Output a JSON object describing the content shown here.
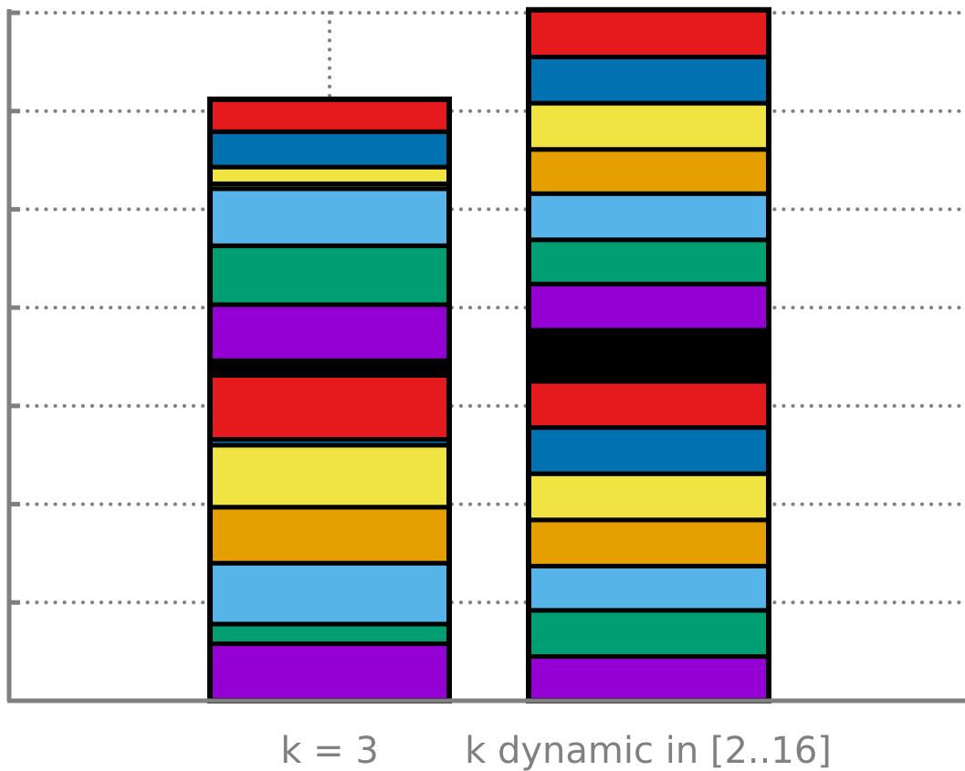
{
  "chart_data": {
    "type": "bar",
    "stacked": true,
    "grid": true,
    "categories": [
      "k = 3",
      "k dynamic in [2..16]"
    ],
    "ylim": [
      0,
      7
    ],
    "yticks": [
      0,
      1,
      2,
      3,
      4,
      5,
      6,
      7
    ],
    "ytick_labels_visible": false,
    "bars": [
      {
        "label": "k = 3",
        "segments": [
          {
            "value": 0.58,
            "color": "#9400D3"
          },
          {
            "value": 0.2,
            "color": "#009E73"
          },
          {
            "value": 0.62,
            "color": "#56B4E9"
          },
          {
            "value": 0.57,
            "color": "#E69F00"
          },
          {
            "value": 0.63,
            "color": "#F0E442"
          },
          {
            "value": 0.06,
            "color": "#0072B2"
          },
          {
            "value": 0.65,
            "color": "#E41A1C"
          },
          {
            "value": 0.15,
            "color": "#000000"
          },
          {
            "value": 0.57,
            "color": "#9400D3"
          },
          {
            "value": 0.6,
            "color": "#009E73"
          },
          {
            "value": 0.58,
            "color": "#56B4E9"
          },
          {
            "value": 0.05,
            "color": "#E69F00"
          },
          {
            "value": 0.17,
            "color": "#F0E442"
          },
          {
            "value": 0.36,
            "color": "#0072B2"
          },
          {
            "value": 0.33,
            "color": "#E41A1C"
          }
        ]
      },
      {
        "label": "k dynamic in [2..16]",
        "segments": [
          {
            "value": 0.45,
            "color": "#9400D3"
          },
          {
            "value": 0.47,
            "color": "#009E73"
          },
          {
            "value": 0.45,
            "color": "#56B4E9"
          },
          {
            "value": 0.47,
            "color": "#E69F00"
          },
          {
            "value": 0.47,
            "color": "#F0E442"
          },
          {
            "value": 0.47,
            "color": "#0072B2"
          },
          {
            "value": 0.47,
            "color": "#E41A1C"
          },
          {
            "value": 0.52,
            "color": "#000000"
          },
          {
            "value": 0.47,
            "color": "#9400D3"
          },
          {
            "value": 0.45,
            "color": "#009E73"
          },
          {
            "value": 0.47,
            "color": "#56B4E9"
          },
          {
            "value": 0.45,
            "color": "#E69F00"
          },
          {
            "value": 0.47,
            "color": "#F0E442"
          },
          {
            "value": 0.47,
            "color": "#0072B2"
          },
          {
            "value": 0.48,
            "color": "#E41A1C"
          }
        ]
      }
    ],
    "colors": {
      "axis": "#808080",
      "grid": "#808080",
      "edge": "#000000"
    }
  }
}
